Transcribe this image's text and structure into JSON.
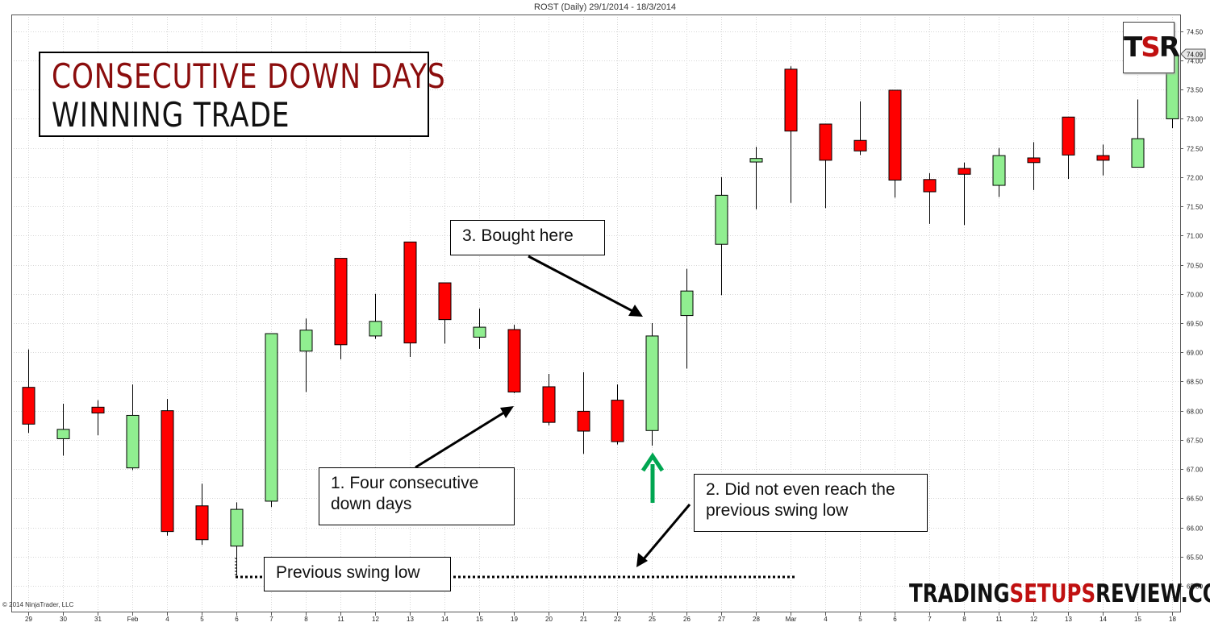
{
  "chart_data": {
    "type": "candlestick",
    "title": "ROST (Daily)  29/1/2014 - 18/3/2014",
    "copyright": "© 2014 NinjaTrader, LLC",
    "ylim": [
      64.95,
      74.6
    ],
    "y_ticks": [
      "65.00",
      "65.50",
      "66.00",
      "66.50",
      "67.00",
      "67.50",
      "68.00",
      "68.50",
      "69.00",
      "69.50",
      "70.00",
      "70.50",
      "71.00",
      "71.50",
      "72.00",
      "72.50",
      "73.00",
      "73.50",
      "74.00",
      "74.50"
    ],
    "last_price_label": "74.09",
    "x_labels": [
      "29",
      "30",
      "31",
      "Feb",
      "4",
      "5",
      "6",
      "7",
      "8",
      "11",
      "12",
      "13",
      "14",
      "15",
      "19",
      "20",
      "21",
      "22",
      "25",
      "26",
      "27",
      "28",
      "Mar",
      "4",
      "5",
      "6",
      "7",
      "8",
      "11",
      "12",
      "13",
      "14",
      "15",
      "18"
    ],
    "candles": [
      {
        "date": "29",
        "open": 68.4,
        "high": 69.05,
        "low": 67.62,
        "close": 67.77
      },
      {
        "date": "30",
        "open": 67.52,
        "high": 68.12,
        "low": 67.23,
        "close": 67.68
      },
      {
        "date": "31",
        "open": 68.06,
        "high": 68.18,
        "low": 67.58,
        "close": 67.96
      },
      {
        "date": "Feb",
        "open": 67.02,
        "high": 68.45,
        "low": 66.98,
        "close": 67.92
      },
      {
        "date": "4",
        "open": 68.0,
        "high": 68.2,
        "low": 65.86,
        "close": 65.93
      },
      {
        "date": "5",
        "open": 66.37,
        "high": 66.75,
        "low": 65.7,
        "close": 65.79
      },
      {
        "date": "6",
        "open": 65.68,
        "high": 66.43,
        "low": 65.18,
        "close": 66.31
      },
      {
        "date": "7",
        "open": 66.45,
        "high": 69.32,
        "low": 66.35,
        "close": 69.32
      },
      {
        "date": "8",
        "open": 69.02,
        "high": 69.58,
        "low": 68.32,
        "close": 69.38
      },
      {
        "date": "11",
        "open": 70.61,
        "high": 70.61,
        "low": 68.88,
        "close": 69.13
      },
      {
        "date": "12",
        "open": 69.28,
        "high": 70.0,
        "low": 69.23,
        "close": 69.53
      },
      {
        "date": "13",
        "open": 70.89,
        "high": 70.89,
        "low": 68.92,
        "close": 69.16
      },
      {
        "date": "14",
        "open": 70.19,
        "high": 70.19,
        "low": 69.15,
        "close": 69.56
      },
      {
        "date": "15",
        "open": 69.26,
        "high": 69.75,
        "low": 69.06,
        "close": 69.43
      },
      {
        "date": "19",
        "open": 69.39,
        "high": 69.47,
        "low": 68.3,
        "close": 68.32
      },
      {
        "date": "20",
        "open": 68.41,
        "high": 68.63,
        "low": 67.75,
        "close": 67.8
      },
      {
        "date": "21",
        "open": 67.99,
        "high": 68.66,
        "low": 67.26,
        "close": 67.65
      },
      {
        "date": "22",
        "open": 68.18,
        "high": 68.45,
        "low": 67.42,
        "close": 67.47
      },
      {
        "date": "25",
        "open": 67.66,
        "high": 69.5,
        "low": 67.4,
        "close": 69.28
      },
      {
        "date": "26",
        "open": 69.63,
        "high": 70.43,
        "low": 68.72,
        "close": 70.05
      },
      {
        "date": "27",
        "open": 70.85,
        "high": 72.0,
        "low": 69.98,
        "close": 71.69
      },
      {
        "date": "28",
        "open": 72.26,
        "high": 72.52,
        "low": 71.45,
        "close": 72.32
      },
      {
        "date": "Mar",
        "open": 73.85,
        "high": 73.9,
        "low": 71.56,
        "close": 72.79
      },
      {
        "date": "4",
        "open": 72.91,
        "high": 72.91,
        "low": 71.47,
        "close": 72.29
      },
      {
        "date": "5",
        "open": 72.63,
        "high": 73.3,
        "low": 72.38,
        "close": 72.45
      },
      {
        "date": "6",
        "open": 73.49,
        "high": 73.49,
        "low": 71.65,
        "close": 71.95
      },
      {
        "date": "7",
        "open": 71.96,
        "high": 72.07,
        "low": 71.2,
        "close": 71.75
      },
      {
        "date": "8",
        "open": 72.15,
        "high": 72.25,
        "low": 71.18,
        "close": 72.05
      },
      {
        "date": "11",
        "open": 71.86,
        "high": 72.5,
        "low": 71.66,
        "close": 72.37
      },
      {
        "date": "12",
        "open": 72.33,
        "high": 72.6,
        "low": 71.78,
        "close": 72.25
      },
      {
        "date": "13",
        "open": 73.03,
        "high": 73.03,
        "low": 71.97,
        "close": 72.38
      },
      {
        "date": "14",
        "open": 72.37,
        "high": 72.56,
        "low": 72.03,
        "close": 72.29
      },
      {
        "date": "15",
        "open": 72.17,
        "high": 73.33,
        "low": 72.17,
        "close": 72.66
      },
      {
        "date": "18",
        "open": 73.0,
        "high": 74.09,
        "low": 72.84,
        "close": 74.09
      }
    ]
  },
  "heading": {
    "line1": "CONSECUTIVE DOWN DAYS",
    "line2": "WINNING TRADE"
  },
  "annotations": {
    "bought": "3. Bought here",
    "four_days_1": "1. Four consecutive",
    "four_days_2": "down days",
    "not_reach_1": "2. Did not even reach the",
    "not_reach_2": "previous swing low",
    "swing_low": "Previous swing low"
  },
  "logo": {
    "t": "T",
    "s": "S",
    "r": "R"
  },
  "brand": {
    "part1": "TRADING",
    "part2": "SETUPS",
    "part3": "REVIEW.COM"
  },
  "colors": {
    "up": "#90ee90",
    "down": "#ff0000",
    "arrow_green": "#00a651",
    "brand_red": "#c01010",
    "title_red": "#8b0d0d"
  }
}
